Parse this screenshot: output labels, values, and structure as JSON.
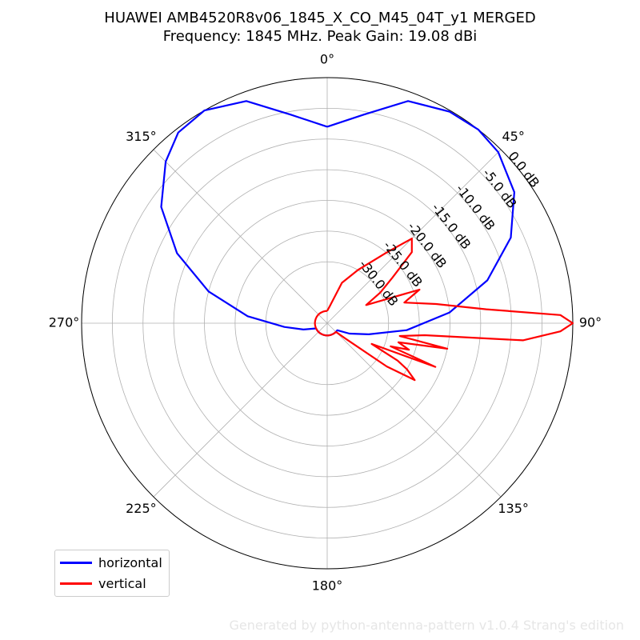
{
  "chart_data": {
    "type": "polar-line",
    "title": "HUAWEI AMB4520R8v06_1845_X_CO_M45_04T_y1 MERGED",
    "subtitle": "Frequency: 1845 MHz. Peak Gain: 19.08 dBi",
    "angle_ticks": [
      "0°",
      "45°",
      "90°",
      "135°",
      "180°",
      "225°",
      "270°",
      "315°"
    ],
    "radial_ticks": [
      "0.0 dB",
      "-5.0 dB",
      "-10.0 dB",
      "-15.0 dB",
      "-20.0 dB",
      "-25.0 dB",
      "-30.0 dB"
    ],
    "radial_values": [
      0,
      -5,
      -10,
      -15,
      -20,
      -25,
      -30
    ],
    "rlim": [
      -40,
      0
    ],
    "grid": true,
    "legend_position": "lower-left",
    "series": [
      {
        "name": "horizontal",
        "color": "#0000ff",
        "angle_deg": [
          0,
          10,
          20,
          30,
          38,
          45,
          55,
          65,
          75,
          85,
          95,
          105,
          115,
          125,
          135,
          145,
          155,
          165,
          175,
          180,
          185,
          195,
          205,
          215,
          225,
          235,
          245,
          255,
          265,
          275,
          285,
          295,
          305,
          315,
          322,
          330,
          340,
          350,
          360
        ],
        "gain_db": [
          -8,
          -5.5,
          -1.5,
          -0.2,
          0,
          -0.6,
          -2.8,
          -7,
          -13,
          -20,
          -27,
          -33,
          -36,
          -38,
          -38,
          -38,
          -38,
          -38,
          -38,
          -38,
          -38,
          -38,
          -38,
          -38,
          -38,
          -38,
          -38,
          -36,
          -33,
          -27,
          -20,
          -13,
          -7,
          -2.8,
          -0.6,
          0,
          -1.5,
          -5.5,
          -8
        ]
      },
      {
        "name": "vertical",
        "color": "#ff0000",
        "angle_deg": [
          0,
          10,
          20,
          30,
          40,
          45,
          50,
          55,
          60,
          65,
          70,
          75,
          80,
          85,
          88,
          90,
          92,
          95,
          97,
          100,
          102,
          105,
          108,
          110,
          112,
          115,
          118,
          120,
          123,
          126,
          130,
          135,
          140,
          145,
          150,
          155,
          160,
          165,
          170,
          175,
          180,
          190,
          200,
          210,
          220,
          230,
          240,
          250,
          260,
          270,
          280,
          290,
          300,
          310,
          320,
          330,
          340,
          350,
          360
        ],
        "gain_db": [
          -38,
          -37,
          -33,
          -30,
          -25,
          -20.5,
          -22,
          -27,
          -30,
          -33,
          -24,
          -27,
          -22,
          -14,
          -2,
          0,
          -2,
          -8,
          -24,
          -28,
          -20,
          -28,
          -26,
          -29,
          -21,
          -32,
          -27,
          -25,
          -23,
          -28,
          -36,
          -38,
          -38,
          -38,
          -38,
          -38,
          -38,
          -38,
          -38,
          -38,
          -38,
          -38,
          -38,
          -38,
          -38,
          -38,
          -38,
          -38,
          -38,
          -38,
          -38,
          -38,
          -38,
          -38,
          -38,
          -38,
          -38,
          -38,
          -38
        ]
      }
    ]
  },
  "footer_text": "Generated by python-antenna-pattern v1.0.4 Strang's edition"
}
